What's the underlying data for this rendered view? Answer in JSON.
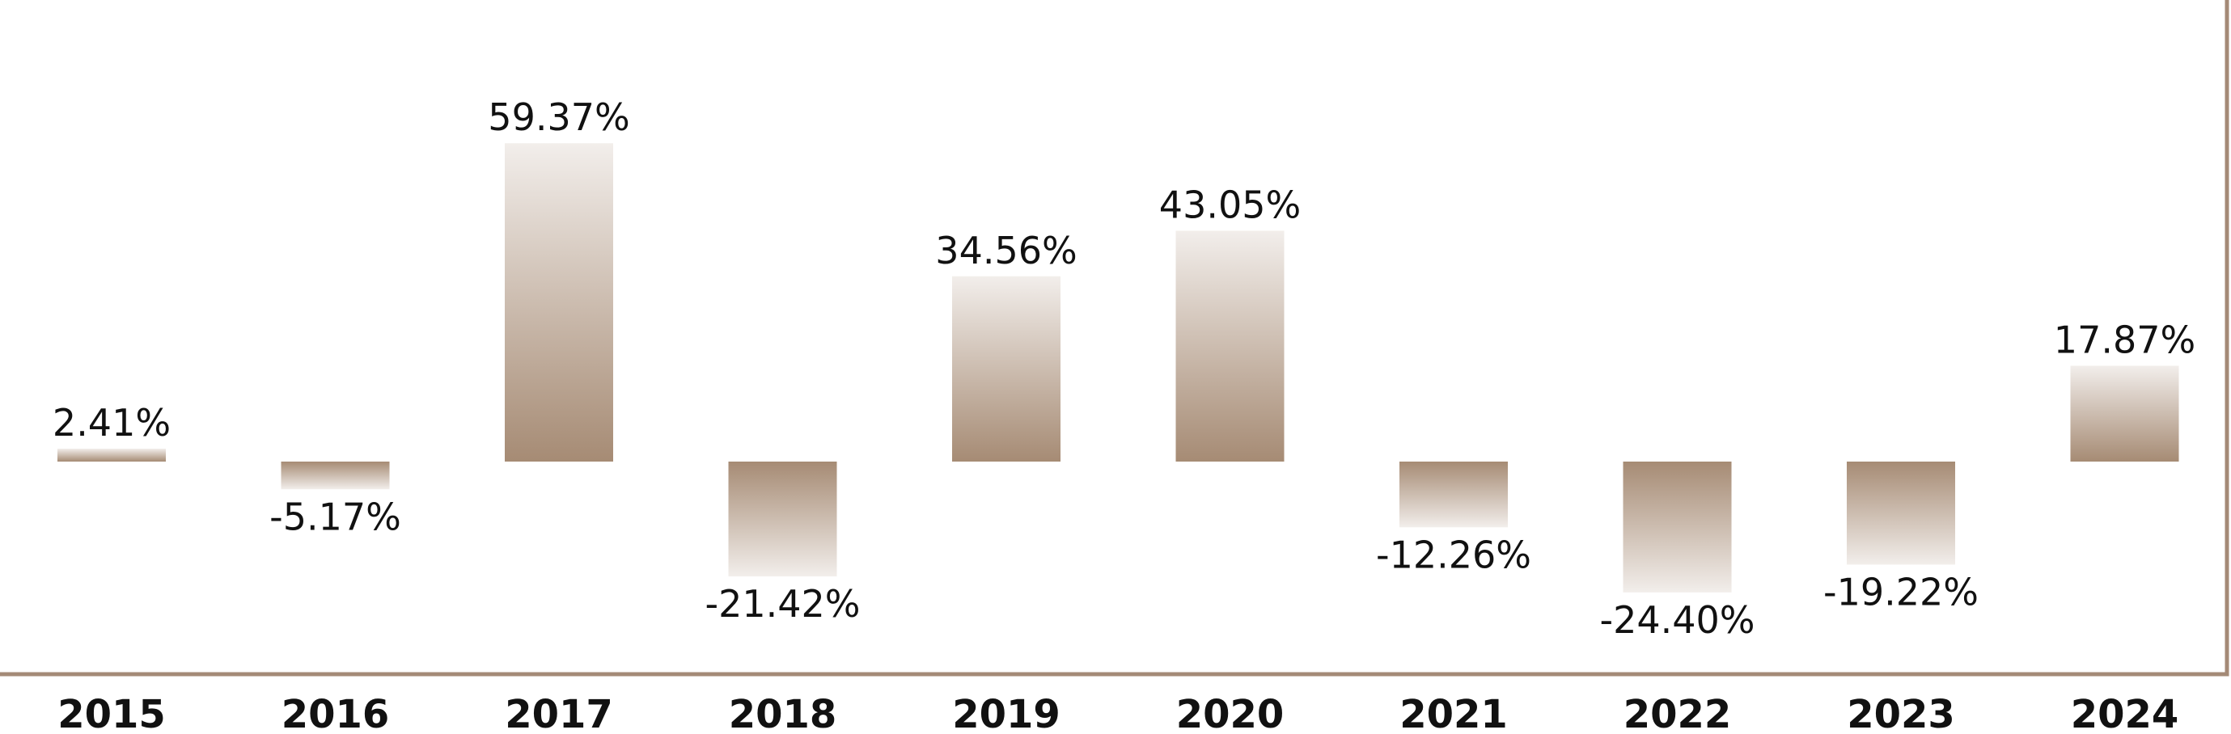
{
  "chart_data": {
    "type": "bar",
    "categories": [
      "2015",
      "2016",
      "2017",
      "2018",
      "2019",
      "2020",
      "2021",
      "2022",
      "2023",
      "2024"
    ],
    "values": [
      2.41,
      -5.17,
      59.37,
      -21.42,
      34.56,
      43.05,
      -12.26,
      -24.4,
      -19.22,
      17.87
    ],
    "value_labels": [
      "2.41%",
      "-5.17%",
      "59.37%",
      "-21.42%",
      "34.56%",
      "43.05%",
      "-12.26%",
      "-24.40%",
      "-19.22%",
      "17.87%"
    ],
    "title": "",
    "xlabel": "",
    "ylabel": "",
    "ylim": [
      -40,
      80
    ],
    "grid": false,
    "legend": "none",
    "bar_color": "#a68b74",
    "bar_fade_color": "#f2eeeb",
    "frame_color": "#a48a77"
  }
}
